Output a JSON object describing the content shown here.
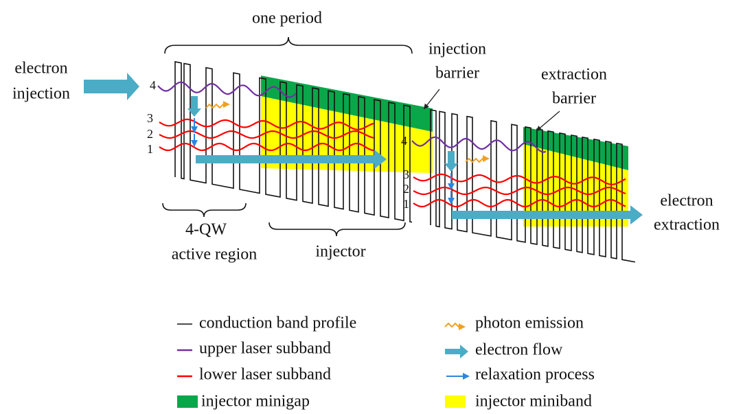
{
  "annotations": {
    "one_period": "one period",
    "electron_injection": [
      "electron",
      "injection"
    ],
    "injection_barrier": [
      "injection",
      "barrier"
    ],
    "extraction_barrier": [
      "extraction",
      "barrier"
    ],
    "active_region": [
      "4-QW",
      "active region"
    ],
    "injector": "injector",
    "electron_extraction": [
      "electron",
      "extraction"
    ]
  },
  "levels": {
    "period_1": [
      "4",
      "3",
      "2",
      "1"
    ],
    "period_2": [
      "4",
      "3",
      "2",
      "1"
    ]
  },
  "legend": [
    "conduction band profile",
    "upper laser subband",
    "lower laser subband",
    "injector minigap",
    "photon emission",
    "electron flow",
    "relaxation process",
    "injector miniband"
  ]
}
